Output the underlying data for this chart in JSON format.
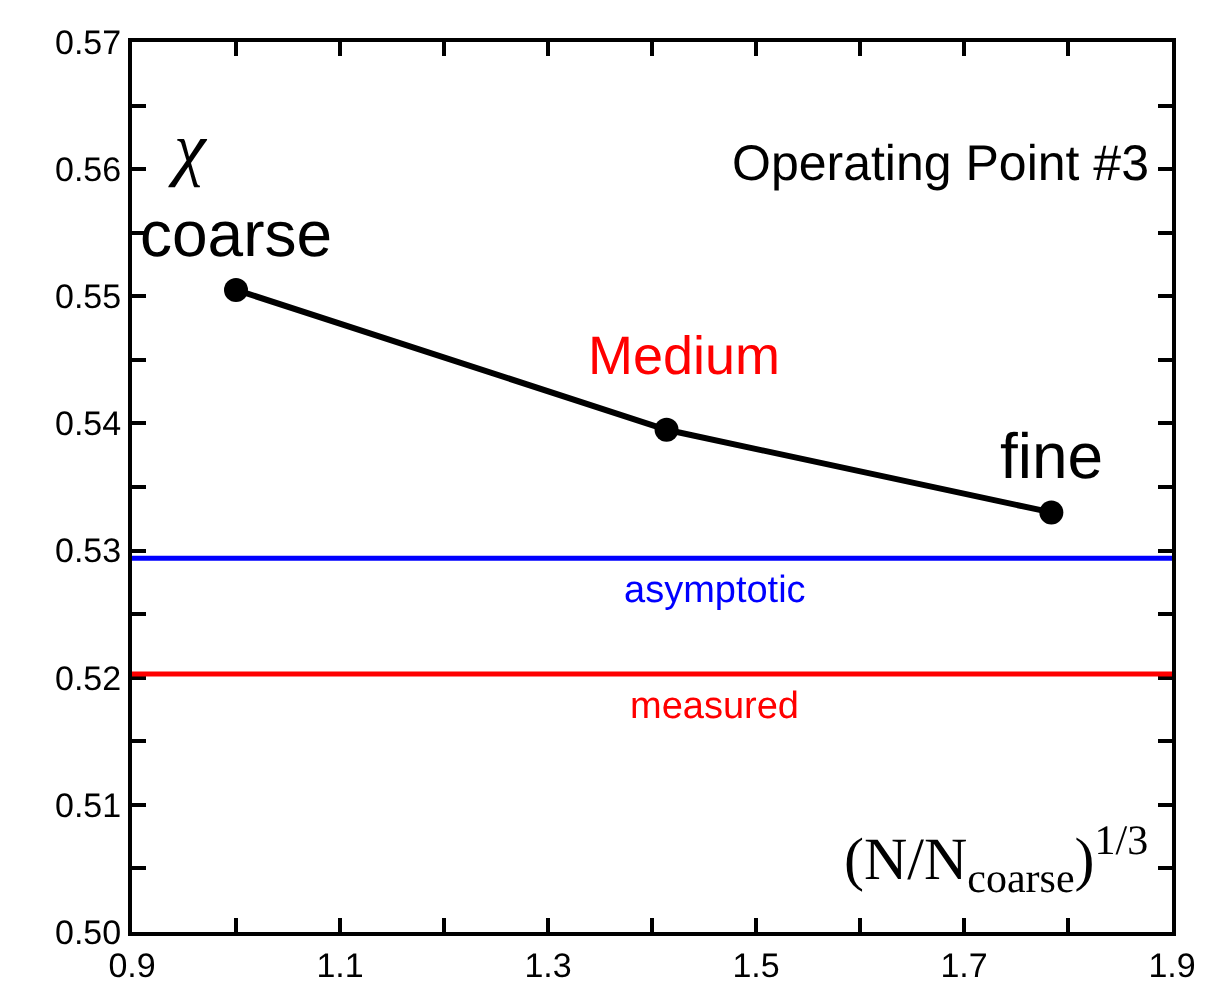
{
  "chart_data": {
    "type": "line",
    "xlabel": "(N/N$_{coarse}$)$^{1/3}$",
    "ylabel": "χ",
    "x": [
      1.0,
      1.414,
      1.784
    ],
    "series": [
      {
        "color": "#000000",
        "values": [
          0.5505,
          0.5395,
          0.533
        ]
      }
    ],
    "marker": "circle",
    "line_style": "solid",
    "xlim": [
      0.9,
      1.9
    ],
    "xticks": [
      0.9,
      {
        "value": 1.0,
        "label": null
      },
      1.1,
      {
        "value": 1.2,
        "label": null
      },
      1.3,
      {
        "value": 1.4,
        "label": null
      },
      1.5,
      {
        "value": 1.6,
        "label": null
      },
      1.7,
      {
        "value": 1.8,
        "label": null
      },
      1.9
    ],
    "ylim": [
      0.5,
      0.57
    ],
    "yticks": [
      "0.50",
      {
        "value": 0.505,
        "label": null
      },
      0.51,
      {
        "value": 0.515,
        "label": null
      },
      0.52,
      {
        "value": 0.525,
        "label": null
      },
      0.53,
      {
        "value": 0.535,
        "label": null
      },
      0.54,
      {
        "value": 0.545,
        "label": null
      },
      0.55,
      {
        "value": 0.555,
        "label": null
      },
      0.56,
      {
        "value": 0.565,
        "label": null
      },
      0.57
    ],
    "ref_lines": [
      {
        "axis": "y",
        "value": 0.5294,
        "label": "asymptotic",
        "color": "#0000ff"
      },
      {
        "axis": "y",
        "value": 0.5203,
        "label": "measured",
        "color": "#ff0000"
      }
    ],
    "annotations": [
      "Operating Point #3",
      "Medium",
      {
        "text": "coarse",
        "x": 1.0,
        "y": 0.5505
      },
      {
        "text": "fine",
        "x": 1.784,
        "y": 0.533
      }
    ]
  }
}
